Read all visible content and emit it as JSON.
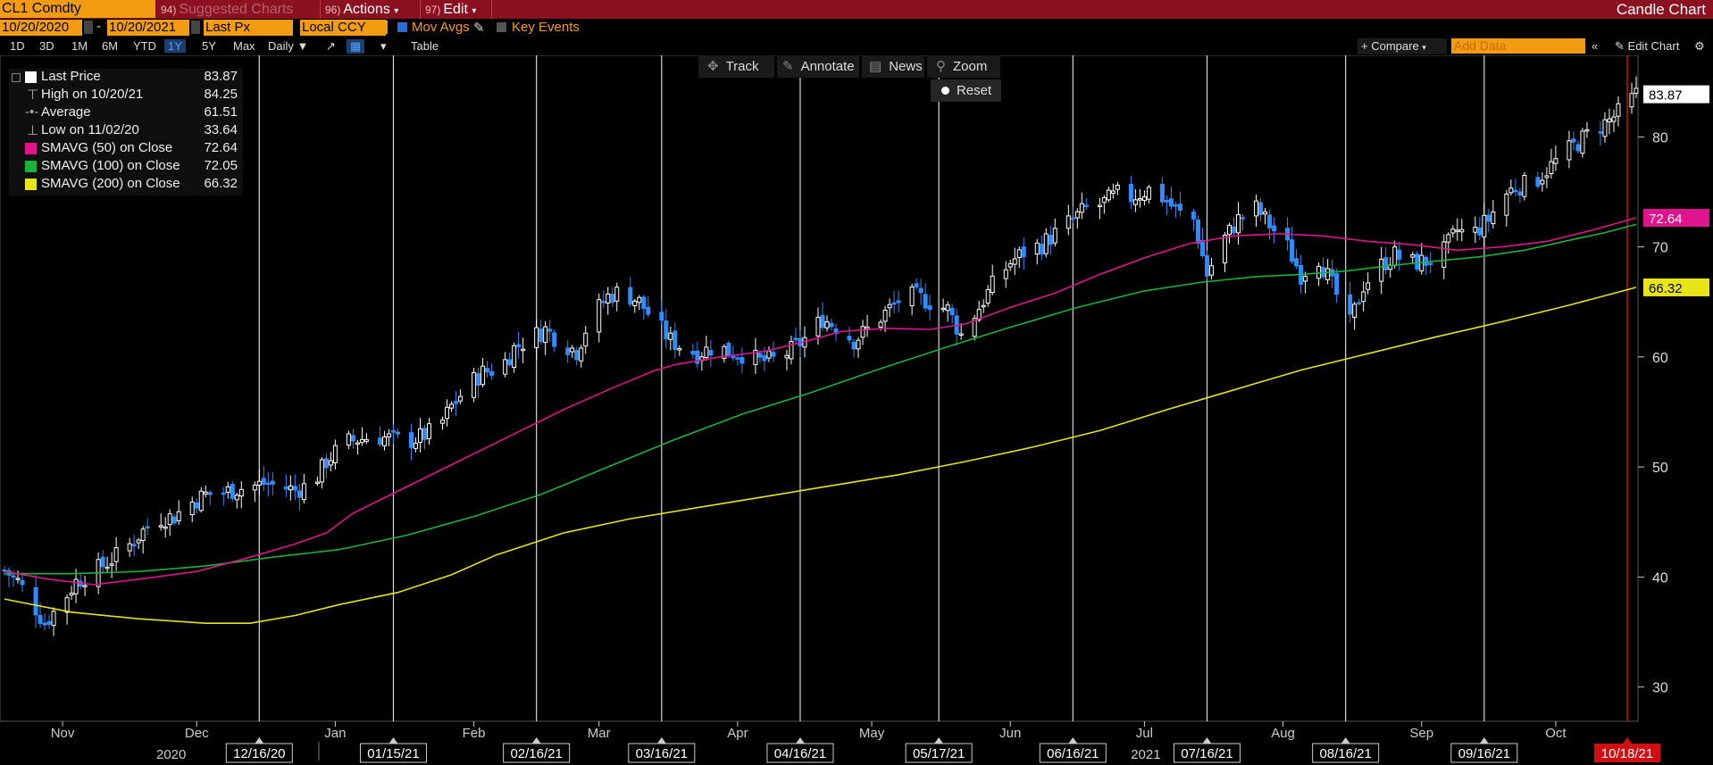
{
  "topbar": {
    "ticker": "CL1 Comdty",
    "suggested_num": "94)",
    "suggested": "Suggested Charts",
    "actions_num": "96)",
    "actions": "Actions",
    "edit_num": "97)",
    "edit": "Edit",
    "title": "Candle Chart"
  },
  "controls": {
    "start_date": "10/20/2020",
    "end_date": "10/20/2021",
    "price_field": "Last Px",
    "currency": "Local CCY",
    "mov_avgs": "Mov Avgs",
    "key_events": "Key Events",
    "ranges": [
      "1D",
      "3D",
      "1M",
      "6M",
      "YTD",
      "1Y",
      "5Y",
      "Max"
    ],
    "selected_range": "1Y",
    "period": "Daily",
    "table": "Table",
    "compare": "+ Compare",
    "add_data_placeholder": "Add Data",
    "edit_chart": "Edit Chart"
  },
  "tools": {
    "track": "Track",
    "annotate": "Annotate",
    "news": "News",
    "zoom": "Zoom",
    "reset": "Reset"
  },
  "legend": [
    {
      "label": "Last Price",
      "value": "83.87",
      "color": "#ffffff"
    },
    {
      "label": "High on 10/20/21",
      "value": "84.25"
    },
    {
      "label": "Average",
      "value": "61.51"
    },
    {
      "label": "Low on 11/02/20",
      "value": "33.64"
    },
    {
      "label": "SMAVG (50)  on Close",
      "value": "72.64",
      "color": "#e0148c"
    },
    {
      "label": "SMAVG (100)  on Close",
      "value": "72.05",
      "color": "#19b33c"
    },
    {
      "label": "SMAVG (200)  on Close",
      "value": "66.32",
      "color": "#e8e418"
    }
  ],
  "chart_data": {
    "type": "candlestick",
    "ylim": [
      29,
      84
    ],
    "yticks": [
      30,
      40,
      50,
      60,
      70,
      80
    ],
    "colors": {
      "up": "#ffffff",
      "down": "#2f8cff",
      "sma50": "#e0148c",
      "sma100": "#19b33c",
      "sma200": "#e8e418",
      "cursor": "#d01010"
    },
    "month_labels": [
      {
        "label": "Nov",
        "day": 13
      },
      {
        "label": "Dec",
        "day": 43
      },
      {
        "label": "Jan",
        "day": 74
      },
      {
        "label": "Feb",
        "day": 105
      },
      {
        "label": "Mar",
        "day": 133
      },
      {
        "label": "Apr",
        "day": 164
      },
      {
        "label": "May",
        "day": 194
      },
      {
        "label": "Jun",
        "day": 225
      },
      {
        "label": "Jul",
        "day": 255
      },
      {
        "label": "Aug",
        "day": 286
      },
      {
        "label": "Sep",
        "day": 317
      },
      {
        "label": "Oct",
        "day": 347
      }
    ],
    "year_labels": [
      {
        "label": "2020",
        "day": 2
      },
      {
        "label": "2021",
        "day": 220
      }
    ],
    "date_markers": [
      {
        "label": "12/16/20",
        "day": 57
      },
      {
        "label": "01/15/21",
        "day": 87
      },
      {
        "label": "02/16/21",
        "day": 119
      },
      {
        "label": "03/16/21",
        "day": 147
      },
      {
        "label": "04/16/21",
        "day": 178
      },
      {
        "label": "05/17/21",
        "day": 209
      },
      {
        "label": "06/16/21",
        "day": 239
      },
      {
        "label": "07/16/21",
        "day": 269
      },
      {
        "label": "08/16/21",
        "day": 300
      },
      {
        "label": "09/16/21",
        "day": 331
      }
    ],
    "cursor_marker": {
      "label": "10/18/21",
      "day": 363
    },
    "last_day": 365,
    "closes": [
      [
        0,
        40.6
      ],
      [
        3,
        39.6
      ],
      [
        6,
        37.8
      ],
      [
        9,
        35.8
      ],
      [
        13,
        37.8
      ],
      [
        16,
        39.6
      ],
      [
        20,
        40.5
      ],
      [
        24,
        41.6
      ],
      [
        27,
        42.5
      ],
      [
        31,
        44.2
      ],
      [
        34,
        45.3
      ],
      [
        38,
        45.5
      ],
      [
        41,
        46.6
      ],
      [
        45,
        47.5
      ],
      [
        48,
        47.6
      ],
      [
        52,
        48.0
      ],
      [
        55,
        48.2
      ],
      [
        58,
        48.5
      ],
      [
        62,
        48.2
      ],
      [
        65,
        47.9
      ],
      [
        69,
        48.5
      ],
      [
        72,
        50.5
      ],
      [
        76,
        52.2
      ],
      [
        79,
        52.5
      ],
      [
        83,
        52.8
      ],
      [
        86,
        52.6
      ],
      [
        90,
        52.3
      ],
      [
        93,
        52.7
      ],
      [
        97,
        53.5
      ],
      [
        100,
        55.5
      ],
      [
        104,
        57.5
      ],
      [
        107,
        58.6
      ],
      [
        111,
        59.0
      ],
      [
        114,
        60.8
      ],
      [
        118,
        61.8
      ],
      [
        121,
        62.5
      ],
      [
        124,
        61.5
      ],
      [
        128,
        60.5
      ],
      [
        131,
        63.5
      ],
      [
        135,
        65.5
      ],
      [
        138,
        66.0
      ],
      [
        142,
        65.0
      ],
      [
        145,
        63.5
      ],
      [
        149,
        61.5
      ],
      [
        152,
        60.8
      ],
      [
        155,
        60.3
      ],
      [
        159,
        61.0
      ],
      [
        162,
        60.5
      ],
      [
        166,
        60.2
      ],
      [
        169,
        59.6
      ],
      [
        173,
        59.8
      ],
      [
        176,
        60.6
      ],
      [
        180,
        62.0
      ],
      [
        183,
        63.5
      ],
      [
        187,
        62.5
      ],
      [
        190,
        61.5
      ],
      [
        194,
        62.8
      ],
      [
        197,
        64.0
      ],
      [
        201,
        65.5
      ],
      [
        204,
        65.5
      ],
      [
        207,
        65.0
      ],
      [
        211,
        64.3
      ],
      [
        214,
        62.0
      ],
      [
        218,
        64.5
      ],
      [
        221,
        66.5
      ],
      [
        225,
        68.6
      ],
      [
        228,
        69.5
      ],
      [
        232,
        70.2
      ],
      [
        235,
        71.2
      ],
      [
        239,
        72.5
      ],
      [
        242,
        73.5
      ],
      [
        245,
        73.8
      ],
      [
        249,
        74.8
      ],
      [
        252,
        74.5
      ],
      [
        256,
        75.2
      ],
      [
        259,
        74.5
      ],
      [
        263,
        73.0
      ],
      [
        266,
        72.5
      ],
      [
        269,
        67.5
      ],
      [
        273,
        70.8
      ],
      [
        276,
        72.5
      ],
      [
        280,
        73.5
      ],
      [
        283,
        72.0
      ],
      [
        287,
        70.0
      ],
      [
        290,
        67.5
      ],
      [
        294,
        69.0
      ],
      [
        297,
        66.5
      ],
      [
        301,
        63.0
      ],
      [
        304,
        66.5
      ],
      [
        307,
        68.0
      ],
      [
        311,
        69.3
      ],
      [
        314,
        68.5
      ],
      [
        318,
        68.7
      ],
      [
        321,
        69.0
      ],
      [
        325,
        71.5
      ],
      [
        328,
        71.0
      ],
      [
        332,
        72.5
      ],
      [
        335,
        74.5
      ],
      [
        338,
        75.5
      ],
      [
        342,
        75.8
      ],
      [
        345,
        77.0
      ],
      [
        349,
        78.5
      ],
      [
        352,
        79.5
      ],
      [
        355,
        80.5
      ],
      [
        359,
        81.5
      ],
      [
        362,
        82.5
      ],
      [
        365,
        83.87
      ]
    ],
    "sma50": [
      [
        0,
        40.5
      ],
      [
        10,
        39.8
      ],
      [
        20,
        39.3
      ],
      [
        30,
        39.8
      ],
      [
        43,
        40.5
      ],
      [
        55,
        41.8
      ],
      [
        65,
        43.0
      ],
      [
        72,
        44.0
      ],
      [
        78,
        45.8
      ],
      [
        85,
        47.2
      ],
      [
        95,
        49.2
      ],
      [
        105,
        51.2
      ],
      [
        115,
        53.2
      ],
      [
        125,
        55.2
      ],
      [
        135,
        57.0
      ],
      [
        145,
        58.7
      ],
      [
        150,
        59.3
      ],
      [
        160,
        60.0
      ],
      [
        170,
        60.5
      ],
      [
        180,
        61.5
      ],
      [
        187,
        62.3
      ],
      [
        197,
        62.6
      ],
      [
        207,
        62.5
      ],
      [
        215,
        63.0
      ],
      [
        225,
        64.5
      ],
      [
        235,
        65.8
      ],
      [
        245,
        67.5
      ],
      [
        255,
        69.0
      ],
      [
        265,
        70.3
      ],
      [
        275,
        71.0
      ],
      [
        285,
        71.2
      ],
      [
        295,
        71.0
      ],
      [
        305,
        70.5
      ],
      [
        315,
        70.2
      ],
      [
        325,
        69.7
      ],
      [
        335,
        70.0
      ],
      [
        345,
        70.5
      ],
      [
        355,
        71.5
      ],
      [
        365,
        72.64
      ]
    ],
    "sma100": [
      [
        0,
        40.3
      ],
      [
        15,
        40.3
      ],
      [
        30,
        40.5
      ],
      [
        45,
        41.0
      ],
      [
        60,
        41.8
      ],
      [
        75,
        42.5
      ],
      [
        90,
        43.8
      ],
      [
        105,
        45.5
      ],
      [
        120,
        47.5
      ],
      [
        135,
        50.0
      ],
      [
        150,
        52.5
      ],
      [
        165,
        54.8
      ],
      [
        180,
        56.7
      ],
      [
        195,
        58.8
      ],
      [
        210,
        60.8
      ],
      [
        225,
        62.7
      ],
      [
        240,
        64.5
      ],
      [
        255,
        66.0
      ],
      [
        268,
        66.8
      ],
      [
        280,
        67.3
      ],
      [
        290,
        67.5
      ],
      [
        300,
        67.8
      ],
      [
        310,
        68.3
      ],
      [
        320,
        68.7
      ],
      [
        330,
        69.1
      ],
      [
        340,
        69.7
      ],
      [
        350,
        70.6
      ],
      [
        358,
        71.3
      ],
      [
        365,
        72.05
      ]
    ],
    "sma200": [
      [
        0,
        38.0
      ],
      [
        15,
        36.8
      ],
      [
        30,
        36.2
      ],
      [
        45,
        35.8
      ],
      [
        55,
        35.8
      ],
      [
        65,
        36.5
      ],
      [
        75,
        37.5
      ],
      [
        88,
        38.6
      ],
      [
        100,
        40.2
      ],
      [
        110,
        42.0
      ],
      [
        125,
        44.0
      ],
      [
        140,
        45.3
      ],
      [
        155,
        46.3
      ],
      [
        170,
        47.3
      ],
      [
        185,
        48.3
      ],
      [
        200,
        49.3
      ],
      [
        215,
        50.5
      ],
      [
        230,
        51.8
      ],
      [
        245,
        53.3
      ],
      [
        260,
        55.2
      ],
      [
        275,
        57.0
      ],
      [
        290,
        58.8
      ],
      [
        305,
        60.3
      ],
      [
        320,
        61.8
      ],
      [
        335,
        63.2
      ],
      [
        350,
        64.7
      ],
      [
        365,
        66.32
      ]
    ],
    "price_tags": [
      {
        "label": "83.87",
        "value": 83.87,
        "bg": "#ffffff",
        "fg": "#000000"
      },
      {
        "label": "72.64",
        "value": 72.64,
        "bg": "#e0148c",
        "fg": "#ffffff"
      },
      {
        "label": "66.32",
        "value": 66.32,
        "bg": "#e8e418",
        "fg": "#000000"
      }
    ]
  }
}
